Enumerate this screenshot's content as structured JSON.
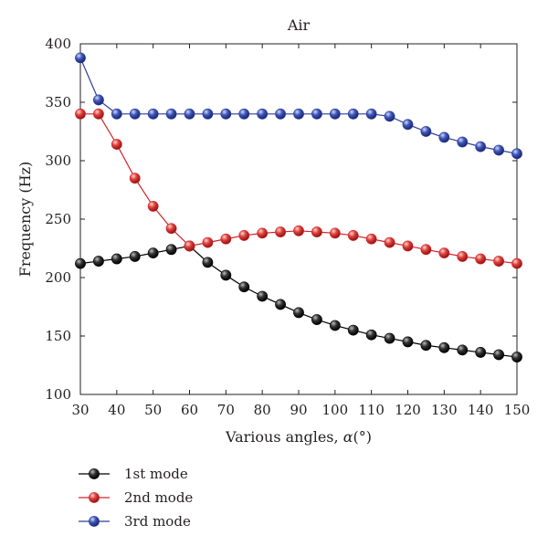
{
  "chart_data": {
    "type": "line",
    "title": "Air",
    "xlabel_prefix": "Various angles, ",
    "xlabel_symbol": "α",
    "xlabel_suffix": "(°)",
    "ylabel": "Frequency (Hz)",
    "xlim": [
      30,
      150
    ],
    "ylim": [
      100,
      400
    ],
    "xticks": [
      30,
      40,
      50,
      60,
      70,
      80,
      90,
      100,
      110,
      120,
      130,
      140,
      150
    ],
    "yticks": [
      100,
      150,
      200,
      250,
      300,
      350,
      400
    ],
    "grid": false,
    "legend_position": "bottom-left, below plot",
    "x": [
      30,
      35,
      40,
      45,
      50,
      55,
      60,
      65,
      70,
      75,
      80,
      85,
      90,
      95,
      100,
      105,
      110,
      115,
      120,
      125,
      130,
      135,
      140,
      145,
      150
    ],
    "series": [
      {
        "name": "1st mode",
        "color": "#000000",
        "values": [
          212,
          214,
          216,
          218,
          221,
          224,
          227,
          213,
          202,
          192,
          184,
          177,
          170,
          164,
          159,
          155,
          151,
          148,
          145,
          142,
          140,
          138,
          136,
          134,
          132
        ]
      },
      {
        "name": "2nd mode",
        "color": "#d2232a",
        "values": [
          340,
          340,
          314,
          285,
          261,
          242,
          227,
          230,
          233,
          236,
          238,
          239,
          240,
          239,
          238,
          236,
          233,
          230,
          227,
          224,
          221,
          218,
          216,
          214,
          212
        ]
      },
      {
        "name": "3rd mode",
        "color": "#2e3d98",
        "values": [
          388,
          352,
          340,
          340,
          340,
          340,
          340,
          340,
          340,
          340,
          340,
          340,
          340,
          340,
          340,
          340,
          340,
          338,
          331,
          325,
          320,
          316,
          312,
          309,
          306
        ]
      }
    ]
  }
}
